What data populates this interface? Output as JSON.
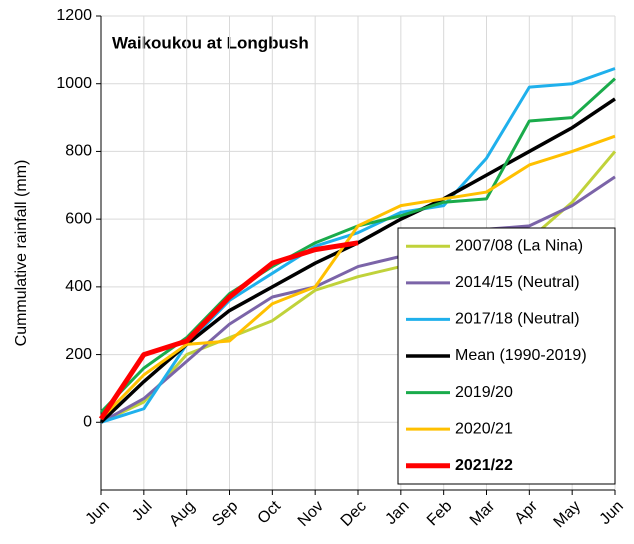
{
  "chart_data": {
    "type": "line",
    "title": "Waikoukou at Longbush",
    "y_label": "Cummulative rainfall (mm)",
    "categories": [
      "Jun",
      "Jul",
      "Aug",
      "Sep",
      "Oct",
      "Nov",
      "Dec",
      "Jan",
      "Feb",
      "Mar",
      "Apr",
      "May",
      "Jun"
    ],
    "ylim": [
      -200,
      1200
    ],
    "yticks": [
      0,
      200,
      400,
      600,
      800,
      1000,
      1200
    ],
    "grid": true,
    "legend": "lower right",
    "series": [
      {
        "name": "2007/08 (La Nina)",
        "color": "#c0d23a",
        "width": 3,
        "values": [
          0,
          60,
          200,
          250,
          300,
          390,
          430,
          460,
          480,
          500,
          540,
          650,
          800
        ]
      },
      {
        "name": "2014/15 (Neutral)",
        "color": "#7b64a8",
        "width": 3,
        "values": [
          0,
          70,
          180,
          290,
          370,
          400,
          460,
          490,
          500,
          570,
          580,
          640,
          725
        ]
      },
      {
        "name": "2017/18 (Neutral)",
        "color": "#1fb0ec",
        "width": 3,
        "values": [
          0,
          40,
          230,
          360,
          440,
          520,
          560,
          620,
          640,
          780,
          990,
          1000,
          1045
        ]
      },
      {
        "name": "Mean (1990-2019)",
        "color": "#000000",
        "width": 3.5,
        "values": [
          0,
          120,
          230,
          330,
          400,
          470,
          530,
          600,
          660,
          730,
          800,
          870,
          955
        ]
      },
      {
        "name": "2019/20",
        "color": "#1aab4b",
        "width": 3,
        "values": [
          30,
          160,
          250,
          380,
          460,
          530,
          580,
          610,
          650,
          660,
          890,
          900,
          1015
        ]
      },
      {
        "name": "2020/21",
        "color": "#ffc000",
        "width": 3,
        "values": [
          10,
          140,
          230,
          240,
          350,
          400,
          580,
          640,
          660,
          680,
          760,
          800,
          845
        ]
      },
      {
        "name": "2021/22",
        "color": "#ff0000",
        "width": 5,
        "bold": true,
        "values": [
          10,
          200,
          240,
          370,
          470,
          510,
          530,
          null,
          null,
          null,
          null,
          null,
          null
        ]
      }
    ]
  }
}
